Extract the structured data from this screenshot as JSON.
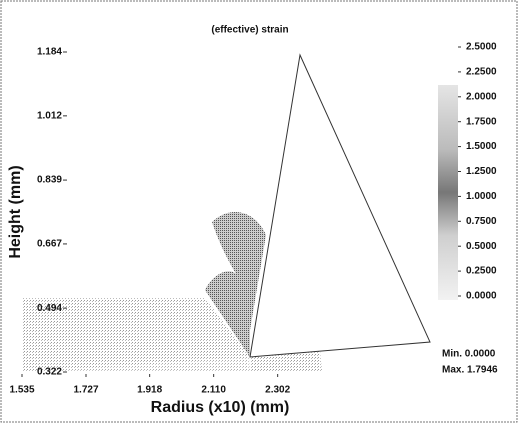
{
  "chart_data": {
    "type": "contour",
    "title": "(effective) strain",
    "x_label": "Radius (x10) (mm)",
    "y_label": "Height (mm)",
    "xlim": [
      1.535,
      2.75
    ],
    "ylim": [
      0.322,
      1.184
    ],
    "xticks": [
      1.535,
      1.727,
      1.918,
      {
        "value": 2.11,
        "label": "2.110"
      },
      2.302
    ],
    "yticks": [
      0.322,
      0.494,
      0.667,
      0.839,
      1.012,
      1.184
    ],
    "colorbar": {
      "clim": [
        0,
        2.5
      ],
      "ticks": [
        {
          "value": 2.5,
          "label": "2.5000"
        },
        {
          "value": 2.25,
          "label": "2.2500"
        },
        {
          "value": 2,
          "label": "2.0000"
        },
        {
          "value": 1.75,
          "label": "1.7500"
        },
        {
          "value": 1.5,
          "label": "1.5000"
        },
        {
          "value": 1.25,
          "label": "1.2500"
        },
        {
          "value": 1,
          "label": "1.0000"
        },
        {
          "value": 0.75,
          "label": "0.7500"
        },
        {
          "value": 0.5,
          "label": "0.5000"
        },
        {
          "value": 0.25,
          "label": "0.2500"
        },
        {
          "value": 0,
          "label": "0.0000"
        }
      ]
    },
    "annotations": [
      "Min. 0.0000",
      "Max. 1.7946"
    ]
  }
}
